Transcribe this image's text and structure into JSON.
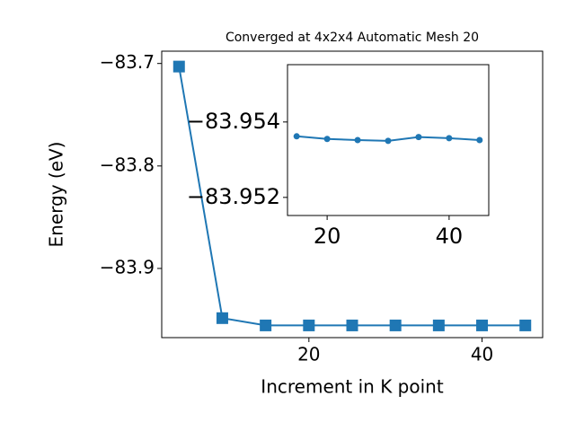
{
  "chart_data": [
    {
      "type": "line",
      "title": "Converged at 4x2x4 Automatic Mesh 20",
      "x_label": "Increment in K point",
      "y_label": "Energy (eV)",
      "x": [
        5,
        10,
        15,
        20,
        25,
        30,
        35,
        40,
        45
      ],
      "series": [
        {
          "color": "#1f77b4",
          "marker": "square",
          "values": [
            -83.703,
            -83.9485,
            -83.9556,
            -83.9556,
            -83.9556,
            -83.9556,
            -83.9556,
            -83.9556,
            -83.9556
          ]
        }
      ],
      "xlim": [
        3,
        47
      ],
      "xticks": [
        20,
        40
      ],
      "ylim": [
        -83.9675,
        -83.688
      ],
      "yticks": [
        {
          "value": -83.7,
          "label": "−83.7"
        },
        {
          "value": -83.8,
          "label": "−83.8"
        },
        {
          "value": -83.9,
          "label": "−83.9"
        }
      ]
    },
    {
      "type": "line",
      "x": [
        15,
        20,
        25,
        30,
        35,
        40,
        45
      ],
      "series": [
        {
          "color": "#1f77b4",
          "marker": "circle",
          "values": [
            -83.95362,
            -83.95355,
            -83.95352,
            -83.9535,
            -83.9536,
            -83.95357,
            -83.95352
          ]
        }
      ],
      "xlim": [
        13.5,
        46.5
      ],
      "xticks": [
        20,
        40
      ],
      "ylim": [
        -83.95152,
        -83.95552
      ],
      "yticks": [
        {
          "value": -83.954,
          "label": "−83.954"
        },
        {
          "value": -83.952,
          "label": "−83.952"
        }
      ]
    }
  ]
}
